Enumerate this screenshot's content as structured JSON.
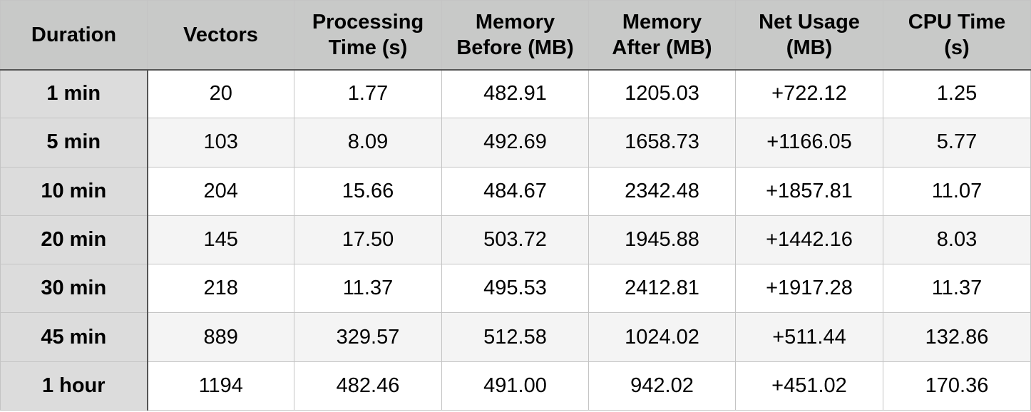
{
  "table": {
    "headers": [
      "Duration",
      "Vectors",
      "Processing\nTime (s)",
      "Memory\nBefore (MB)",
      "Memory\nAfter (MB)",
      "Net Usage\n(MB)",
      "CPU Time\n(s)"
    ],
    "rows": [
      [
        "1 min",
        "20",
        "1.77",
        "482.91",
        "1205.03",
        "+722.12",
        "1.25"
      ],
      [
        "5 min",
        "103",
        "8.09",
        "492.69",
        "1658.73",
        "+1166.05",
        "5.77"
      ],
      [
        "10 min",
        "204",
        "15.66",
        "484.67",
        "2342.48",
        "+1857.81",
        "11.07"
      ],
      [
        "20 min",
        "145",
        "17.50",
        "503.72",
        "1945.88",
        "+1442.16",
        "8.03"
      ],
      [
        "30 min",
        "218",
        "11.37",
        "495.53",
        "2412.81",
        "+1917.28",
        "11.37"
      ],
      [
        "45 min",
        "889",
        "329.57",
        "512.58",
        "1024.02",
        "+511.44",
        "132.86"
      ],
      [
        "1 hour",
        "1194",
        "482.46",
        "491.00",
        "942.02",
        "+451.02",
        "170.36"
      ]
    ]
  },
  "colors": {
    "header_bg": "#c8c9c8",
    "row_header_bg": "#dcdcdc",
    "odd_row_bg": "#ffffff",
    "even_row_bg": "#f4f4f4",
    "grid_line": "#c4c4c4",
    "divider_line": "#555555"
  }
}
